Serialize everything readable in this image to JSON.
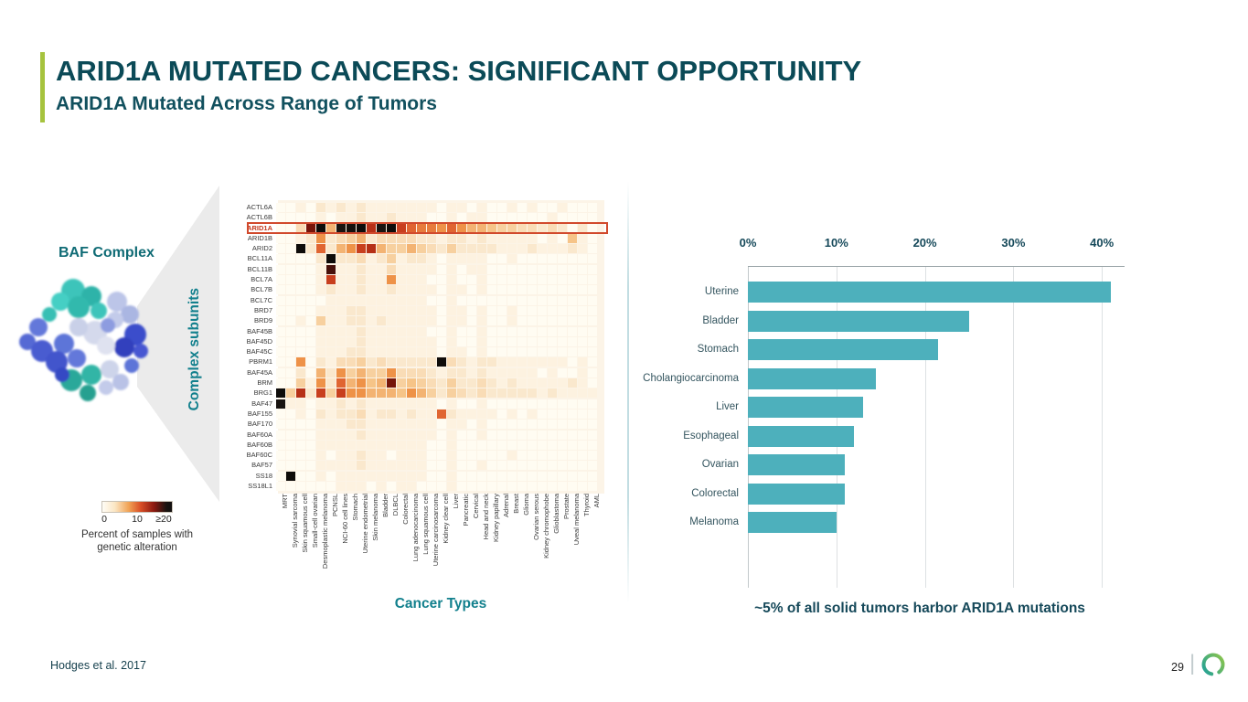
{
  "header": {
    "title": "ARID1A MUTATED CANCERS: SIGNIFICANT OPPORTUNITY",
    "subtitle": "ARID1A Mutated Across Range of Tumors"
  },
  "left_panel": {
    "baf_label": "BAF Complex",
    "legend": {
      "tick_labels": [
        "0",
        "10",
        "≥20"
      ],
      "caption": "Percent of samples with genetic alteration"
    }
  },
  "chart_data": [
    {
      "type": "heatmap",
      "xlabel": "Cancer Types",
      "ylabel": "Complex subunits",
      "highlighted_row": "ARID1A",
      "scale": {
        "min": 0,
        "mid": 10,
        "max": 20,
        "legend": "Percent of samples with genetic alteration"
      },
      "rows": [
        "ACTL6A",
        "ACTL6B",
        "ARID1A",
        "ARID1B",
        "ARID2",
        "BCL11A",
        "BCL11B",
        "BCL7A",
        "BCL7B",
        "BCL7C",
        "BRD7",
        "BRD9",
        "BAF45B",
        "BAF45D",
        "BAF45C",
        "PBRM1",
        "BAF45A",
        "BRM",
        "BRG1",
        "BAF47",
        "BAF155",
        "BAF170",
        "BAF60A",
        "BAF60B",
        "BAF60C",
        "BAF57",
        "SS18",
        "SS18L1"
      ],
      "columns": [
        "MRT",
        "Synovial sarcoma",
        "Skin squamous cell",
        "Small-cell ovarian",
        "Desmoplastic melanoma",
        "PCNSL",
        "NCI-60 cell lines",
        "Stomach",
        "Uterine endometrial",
        "Skin melanoma",
        "Bladder",
        "DLBCL",
        "Colorectal",
        "Lung adenocarcinoma",
        "Lung squamous cell",
        "Uterine carcinosarcoma",
        "Kidney clear cell",
        "Liver",
        "Pancreatic",
        "Cervical",
        "Head and neck",
        "Kidney papillary",
        "Adrenal",
        "Breast",
        "Glioma",
        "Ovarian serous",
        "Kidney chromophobe",
        "Glioblastoma",
        "Prostate",
        "Uveal melanoma",
        "Thyroid",
        "AML"
      ],
      "values": [
        [
          0,
          0,
          1,
          0,
          2,
          1,
          2,
          1,
          2,
          1,
          1,
          1,
          1,
          1,
          1,
          1,
          0,
          1,
          1,
          0,
          1,
          0,
          0,
          1,
          0,
          1,
          0,
          0,
          1,
          0,
          0,
          0
        ],
        [
          0,
          0,
          0,
          0,
          1,
          0,
          1,
          1,
          2,
          1,
          1,
          2,
          1,
          1,
          1,
          0,
          0,
          1,
          0,
          1,
          1,
          0,
          0,
          0,
          0,
          0,
          0,
          1,
          0,
          0,
          0,
          0
        ],
        [
          0,
          0,
          3,
          16,
          25,
          6,
          20,
          22,
          25,
          13,
          20,
          25,
          12,
          10,
          9,
          9,
          8,
          10,
          8,
          6,
          6,
          5,
          4,
          4,
          3,
          3,
          2,
          3,
          2,
          0,
          2,
          0
        ],
        [
          0,
          0,
          1,
          2,
          8,
          2,
          3,
          4,
          6,
          2,
          3,
          3,
          3,
          3,
          2,
          2,
          1,
          2,
          2,
          1,
          2,
          1,
          1,
          1,
          1,
          1,
          0,
          1,
          0,
          5,
          1,
          0
        ],
        [
          0,
          0,
          25,
          2,
          10,
          2,
          6,
          8,
          12,
          13,
          6,
          4,
          4,
          6,
          4,
          3,
          2,
          4,
          2,
          2,
          2,
          2,
          1,
          1,
          1,
          2,
          1,
          1,
          1,
          2,
          1,
          0
        ],
        [
          0,
          0,
          0,
          0,
          2,
          25,
          2,
          2,
          3,
          1,
          2,
          4,
          1,
          2,
          2,
          1,
          0,
          1,
          1,
          1,
          1,
          0,
          0,
          1,
          0,
          0,
          0,
          0,
          0,
          0,
          0,
          0
        ],
        [
          0,
          0,
          0,
          0,
          1,
          18,
          1,
          1,
          2,
          1,
          1,
          3,
          1,
          1,
          1,
          1,
          0,
          1,
          0,
          1,
          1,
          0,
          0,
          0,
          0,
          0,
          0,
          0,
          0,
          0,
          0,
          0
        ],
        [
          0,
          0,
          0,
          0,
          1,
          12,
          1,
          1,
          2,
          1,
          1,
          8,
          1,
          1,
          1,
          0,
          0,
          1,
          0,
          0,
          1,
          0,
          0,
          0,
          0,
          0,
          0,
          0,
          0,
          0,
          0,
          0
        ],
        [
          0,
          0,
          0,
          0,
          1,
          2,
          1,
          1,
          2,
          1,
          1,
          2,
          1,
          1,
          1,
          1,
          0,
          1,
          1,
          0,
          1,
          0,
          0,
          0,
          0,
          0,
          0,
          0,
          0,
          0,
          0,
          0
        ],
        [
          0,
          0,
          0,
          0,
          0,
          1,
          1,
          1,
          1,
          1,
          1,
          1,
          1,
          1,
          1,
          0,
          0,
          1,
          0,
          0,
          0,
          0,
          0,
          0,
          0,
          0,
          0,
          0,
          0,
          0,
          0,
          0
        ],
        [
          0,
          0,
          0,
          0,
          1,
          1,
          1,
          2,
          2,
          1,
          1,
          1,
          1,
          1,
          1,
          1,
          0,
          1,
          1,
          0,
          1,
          0,
          0,
          1,
          0,
          0,
          0,
          0,
          0,
          0,
          0,
          0
        ],
        [
          0,
          0,
          1,
          0,
          4,
          1,
          1,
          2,
          2,
          1,
          2,
          1,
          1,
          1,
          1,
          1,
          0,
          1,
          1,
          0,
          1,
          0,
          0,
          1,
          0,
          0,
          0,
          0,
          0,
          0,
          0,
          0
        ],
        [
          0,
          0,
          0,
          0,
          1,
          1,
          1,
          1,
          2,
          1,
          1,
          1,
          1,
          1,
          1,
          0,
          0,
          1,
          0,
          0,
          1,
          0,
          0,
          0,
          0,
          0,
          0,
          0,
          0,
          0,
          0,
          0
        ],
        [
          0,
          0,
          0,
          0,
          1,
          1,
          1,
          1,
          2,
          1,
          1,
          1,
          1,
          1,
          1,
          1,
          0,
          1,
          0,
          0,
          1,
          0,
          0,
          0,
          0,
          0,
          0,
          0,
          0,
          0,
          0,
          0
        ],
        [
          0,
          0,
          0,
          0,
          1,
          1,
          1,
          2,
          2,
          1,
          1,
          1,
          1,
          1,
          1,
          1,
          0,
          1,
          1,
          0,
          1,
          0,
          0,
          0,
          0,
          0,
          0,
          0,
          0,
          0,
          0,
          0
        ],
        [
          0,
          0,
          8,
          0,
          2,
          1,
          3,
          3,
          4,
          2,
          3,
          2,
          2,
          2,
          2,
          2,
          25,
          3,
          2,
          1,
          2,
          2,
          1,
          1,
          1,
          1,
          1,
          1,
          1,
          0,
          1,
          0
        ],
        [
          0,
          0,
          2,
          0,
          6,
          2,
          8,
          4,
          6,
          4,
          4,
          8,
          3,
          3,
          3,
          2,
          1,
          2,
          2,
          1,
          2,
          1,
          1,
          1,
          1,
          1,
          0,
          1,
          0,
          0,
          1,
          0
        ],
        [
          0,
          0,
          4,
          1,
          8,
          2,
          10,
          6,
          8,
          5,
          6,
          16,
          4,
          5,
          4,
          3,
          2,
          4,
          2,
          2,
          3,
          2,
          1,
          2,
          1,
          1,
          1,
          1,
          1,
          2,
          1,
          0
        ],
        [
          25,
          4,
          13,
          2,
          12,
          4,
          12,
          8,
          8,
          6,
          6,
          6,
          5,
          8,
          6,
          4,
          2,
          4,
          3,
          2,
          3,
          2,
          2,
          2,
          2,
          2,
          1,
          2,
          1,
          1,
          1,
          1
        ],
        [
          20,
          1,
          1,
          0,
          1,
          1,
          2,
          1,
          2,
          1,
          1,
          1,
          1,
          1,
          1,
          1,
          0,
          1,
          0,
          0,
          1,
          0,
          0,
          0,
          0,
          0,
          0,
          0,
          0,
          0,
          0,
          0
        ],
        [
          0,
          0,
          1,
          0,
          2,
          1,
          2,
          2,
          3,
          1,
          2,
          2,
          1,
          2,
          1,
          1,
          10,
          2,
          1,
          1,
          1,
          1,
          0,
          1,
          0,
          1,
          0,
          0,
          0,
          0,
          0,
          0
        ],
        [
          0,
          0,
          0,
          0,
          1,
          1,
          1,
          2,
          2,
          1,
          1,
          1,
          1,
          1,
          1,
          1,
          0,
          1,
          1,
          0,
          1,
          0,
          0,
          0,
          0,
          0,
          0,
          0,
          0,
          0,
          0,
          0
        ],
        [
          0,
          0,
          0,
          0,
          1,
          1,
          1,
          1,
          2,
          1,
          1,
          1,
          1,
          1,
          1,
          1,
          0,
          1,
          0,
          0,
          1,
          0,
          0,
          0,
          0,
          0,
          0,
          0,
          0,
          0,
          0,
          0
        ],
        [
          0,
          0,
          0,
          0,
          1,
          1,
          1,
          1,
          1,
          1,
          1,
          1,
          1,
          1,
          1,
          0,
          0,
          1,
          0,
          0,
          0,
          0,
          0,
          0,
          0,
          0,
          0,
          0,
          0,
          0,
          0,
          0
        ],
        [
          0,
          0,
          0,
          0,
          1,
          0,
          1,
          1,
          2,
          1,
          1,
          0,
          1,
          1,
          1,
          0,
          0,
          1,
          0,
          0,
          0,
          0,
          0,
          1,
          0,
          0,
          0,
          0,
          0,
          0,
          0,
          0
        ],
        [
          0,
          0,
          0,
          0,
          1,
          1,
          1,
          1,
          2,
          1,
          1,
          1,
          1,
          1,
          1,
          0,
          0,
          1,
          0,
          0,
          1,
          0,
          0,
          0,
          0,
          0,
          0,
          0,
          0,
          0,
          0,
          0
        ],
        [
          0,
          25,
          0,
          0,
          1,
          0,
          1,
          1,
          1,
          1,
          1,
          1,
          1,
          1,
          1,
          0,
          0,
          1,
          0,
          0,
          0,
          0,
          0,
          0,
          0,
          0,
          0,
          0,
          0,
          0,
          0,
          0
        ],
        [
          0,
          0,
          0,
          0,
          0,
          0,
          1,
          1,
          1,
          0,
          1,
          0,
          1,
          1,
          0,
          0,
          0,
          1,
          0,
          0,
          0,
          0,
          0,
          0,
          0,
          0,
          0,
          0,
          0,
          0,
          0,
          0
        ]
      ]
    },
    {
      "type": "bar",
      "orientation": "horizontal",
      "categories": [
        "Uterine",
        "Bladder",
        "Stomach",
        "Cholangiocarcinoma",
        "Liver",
        "Esophageal",
        "Ovarian",
        "Colorectal",
        "Melanoma"
      ],
      "values": [
        41,
        25,
        21.5,
        14.5,
        13,
        12,
        11,
        11,
        10
      ],
      "x_ticks": [
        "0%",
        "10%",
        "20%",
        "30%",
        "40%"
      ],
      "xlim": [
        0,
        42
      ],
      "bar_color": "#4db0bc",
      "caption": "~5% of all solid tumors harbor ARID1A mutations"
    }
  ],
  "footer": {
    "citation": "Hodges et al. 2017",
    "page_number": "29",
    "separator": "|"
  },
  "colors": {
    "title": "#0b4a57",
    "axis_teal": "#12808d",
    "bar_teal": "#4db0bc",
    "accent_green": "#a6c33e",
    "highlight_orange": "#d1492c"
  }
}
